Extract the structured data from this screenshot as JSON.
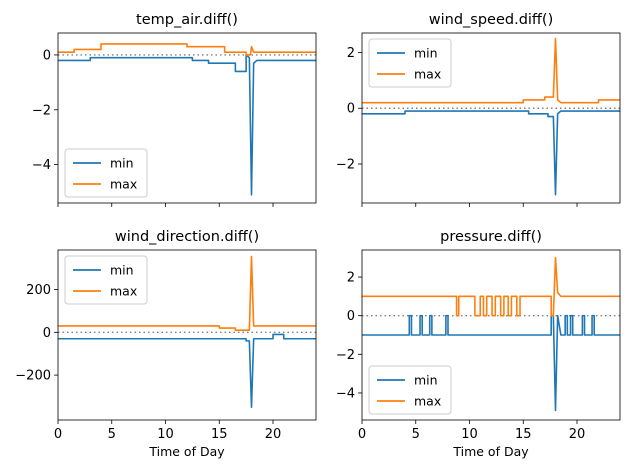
{
  "chart_data": [
    {
      "type": "line",
      "title": "temp_air.diff()",
      "xlabel": "",
      "ylabel": "",
      "xlim": [
        0,
        24
      ],
      "ylim": [
        -5.4,
        0.8
      ],
      "xticks": [
        0,
        5,
        10,
        15,
        20
      ],
      "xtick_labels": [
        "",
        "",
        "",
        "",
        ""
      ],
      "yticks": [
        0,
        -2,
        -4
      ],
      "ytick_labels": [
        "0",
        "−2",
        "−4"
      ],
      "zero_line": 0,
      "legend": "lower-left",
      "series": [
        {
          "name": "min",
          "color": "#1f77b4",
          "x": [
            0,
            3,
            3,
            6.5,
            6.5,
            12.5,
            12.5,
            14,
            14,
            16.5,
            16.5,
            17.5,
            17.5,
            17.8,
            18.0,
            18.2,
            18.5,
            24
          ],
          "y": [
            -0.2,
            -0.2,
            -0.1,
            -0.1,
            -0.1,
            -0.1,
            -0.2,
            -0.2,
            -0.3,
            -0.3,
            -0.6,
            -0.6,
            0,
            -0.1,
            -5.1,
            -0.3,
            -0.2,
            -0.2
          ]
        },
        {
          "name": "max",
          "color": "#ff7f0e",
          "x": [
            0,
            1.5,
            1.5,
            4,
            4,
            12,
            12,
            15.5,
            15.5,
            17.5,
            17.5,
            17.9,
            18.0,
            18.2,
            18.5,
            24
          ],
          "y": [
            0.1,
            0.1,
            0.2,
            0.2,
            0.4,
            0.4,
            0.3,
            0.3,
            0.1,
            0.1,
            0,
            0,
            0.3,
            0.1,
            0.1,
            0.1
          ]
        }
      ]
    },
    {
      "type": "line",
      "title": "wind_speed.diff()",
      "xlabel": "",
      "ylabel": "",
      "xlim": [
        0,
        24
      ],
      "ylim": [
        -3.4,
        2.7
      ],
      "xticks": [
        0,
        5,
        10,
        15,
        20
      ],
      "xtick_labels": [
        "",
        "",
        "",
        "",
        ""
      ],
      "yticks": [
        2,
        0,
        -2
      ],
      "ytick_labels": [
        "2",
        "0",
        "−2"
      ],
      "zero_line": 0,
      "legend": "upper-left",
      "series": [
        {
          "name": "min",
          "color": "#1f77b4",
          "x": [
            0,
            4,
            4,
            9,
            9,
            15.5,
            15.5,
            17.3,
            17.3,
            17.8,
            18.0,
            18.2,
            18.5,
            24
          ],
          "y": [
            -0.2,
            -0.2,
            -0.1,
            -0.1,
            -0.1,
            -0.1,
            -0.2,
            -0.2,
            -0.3,
            -0.3,
            -3.1,
            -0.2,
            -0.1,
            -0.1
          ]
        },
        {
          "name": "max",
          "color": "#ff7f0e",
          "x": [
            0,
            5,
            5,
            15,
            15,
            17,
            17,
            17.8,
            18.0,
            18.2,
            18.5,
            22,
            22,
            24
          ],
          "y": [
            0.2,
            0.2,
            0.2,
            0.2,
            0.3,
            0.3,
            0.4,
            0.4,
            2.5,
            0.3,
            0.2,
            0.2,
            0.3,
            0.3
          ]
        }
      ]
    },
    {
      "type": "line",
      "title": "wind_direction.diff()",
      "xlabel": "Time of Day",
      "ylabel": "",
      "xlim": [
        0,
        24
      ],
      "ylim": [
        -410,
        385
      ],
      "xticks": [
        0,
        5,
        10,
        15,
        20
      ],
      "xtick_labels": [
        "0",
        "5",
        "10",
        "15",
        "20"
      ],
      "yticks": [
        200,
        0,
        -200
      ],
      "ytick_labels": [
        "200",
        "0",
        "−200"
      ],
      "zero_line": 0,
      "legend": "upper-left",
      "series": [
        {
          "name": "min",
          "color": "#1f77b4",
          "x": [
            0,
            17.5,
            17.5,
            17.8,
            18.0,
            18.2,
            18.5,
            20,
            20,
            21,
            21,
            24
          ],
          "y": [
            -30,
            -30,
            -40,
            -40,
            -350,
            -30,
            -30,
            -30,
            -10,
            -10,
            -30,
            -30
          ]
        },
        {
          "name": "max",
          "color": "#ff7f0e",
          "x": [
            0,
            15,
            15,
            16.5,
            16.5,
            17.8,
            18.0,
            18.2,
            18.5,
            24
          ],
          "y": [
            30,
            30,
            20,
            20,
            10,
            10,
            355,
            30,
            30,
            30
          ]
        }
      ]
    },
    {
      "type": "line",
      "title": "pressure.diff()",
      "xlabel": "Time of Day",
      "ylabel": "",
      "xlim": [
        0,
        24
      ],
      "ylim": [
        -5.4,
        3.4
      ],
      "xticks": [
        0,
        5,
        10,
        15,
        20
      ],
      "xtick_labels": [
        "0",
        "5",
        "10",
        "15",
        "20"
      ],
      "yticks": [
        2,
        0,
        -2,
        -4
      ],
      "ytick_labels": [
        "2",
        "0",
        "−2",
        "−4"
      ],
      "zero_line": 0,
      "legend": "lower-left",
      "series": [
        {
          "name": "min",
          "color": "#1f77b4",
          "x": [
            0,
            4.4,
            4.4,
            4.6,
            4.6,
            5.4,
            5.4,
            5.6,
            5.6,
            6.3,
            6.3,
            6.5,
            6.5,
            7.8,
            7.8,
            8.0,
            8.0,
            17.6,
            17.6,
            17.8,
            18.0,
            18.2,
            18.5,
            18.9,
            18.9,
            19.1,
            19.1,
            19.4,
            19.4,
            19.6,
            19.6,
            20.5,
            20.5,
            20.7,
            20.7,
            21.4,
            21.4,
            21.6,
            21.6,
            24
          ],
          "y": [
            -1,
            -1,
            0,
            0,
            -1,
            -1,
            0,
            0,
            -1,
            -1,
            0,
            0,
            -1,
            -1,
            0,
            0,
            -1,
            -1,
            0,
            0,
            -4.9,
            0,
            -1,
            -1,
            0,
            0,
            -1,
            -1,
            0,
            0,
            -1,
            -1,
            0,
            0,
            -1,
            -1,
            0,
            0,
            -1,
            -1
          ]
        },
        {
          "name": "max",
          "color": "#ff7f0e",
          "x": [
            0,
            8.8,
            8.8,
            9.0,
            9.0,
            10.5,
            10.5,
            11.0,
            11.0,
            11.3,
            11.3,
            11.6,
            11.6,
            12.1,
            12.1,
            12.4,
            12.4,
            12.9,
            12.9,
            13.2,
            13.2,
            13.6,
            13.6,
            13.9,
            13.9,
            14.4,
            14.4,
            14.7,
            14.7,
            17.6,
            17.6,
            17.8,
            18.0,
            18.2,
            18.5,
            24
          ],
          "y": [
            1,
            1,
            0,
            0,
            1,
            1,
            0,
            0,
            1,
            1,
            0,
            0,
            1,
            1,
            0,
            0,
            1,
            1,
            0,
            0,
            1,
            1,
            0,
            0,
            1,
            1,
            0,
            0,
            1,
            1,
            0,
            0,
            3,
            1.2,
            1,
            1
          ]
        }
      ]
    }
  ]
}
